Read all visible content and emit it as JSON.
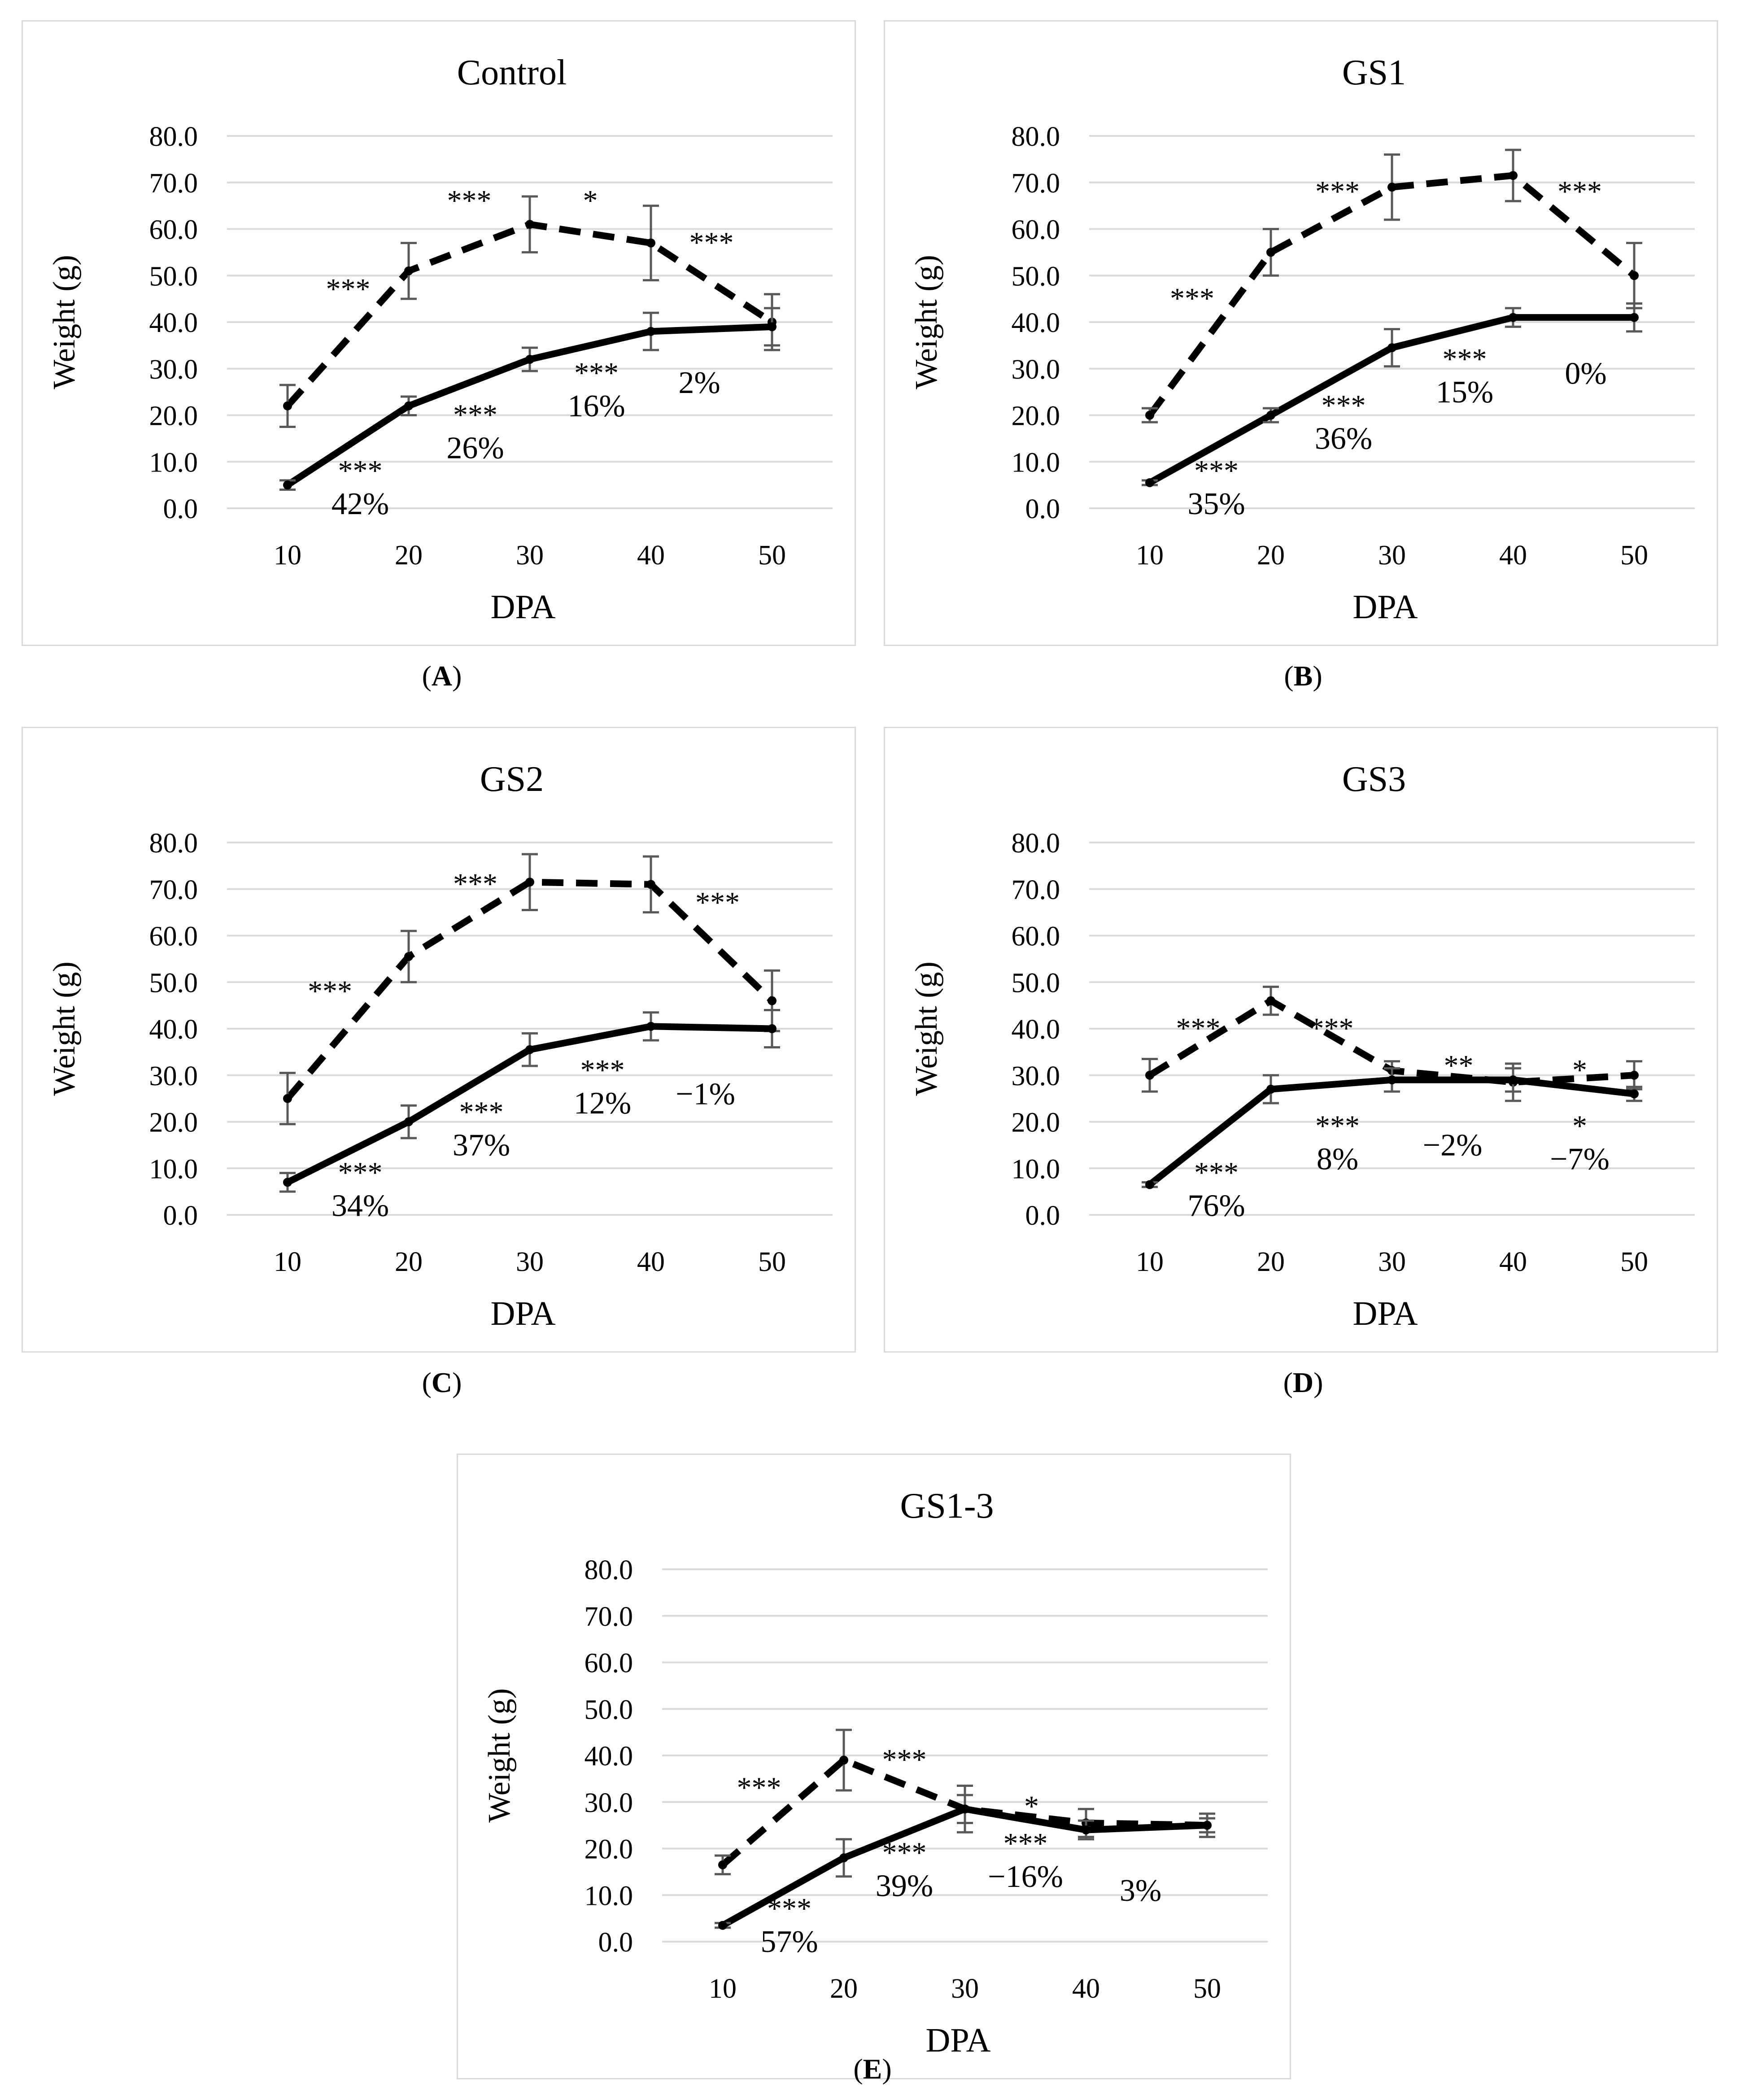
{
  "chart_data": [
    {
      "type": "line",
      "title": "Control",
      "panel_label": "A",
      "xlabel": "DPA",
      "ylabel": "Weight (g)",
      "x": [
        10,
        20,
        30,
        40,
        50
      ],
      "ylim": [
        0,
        80
      ],
      "y_ticks": [
        "0.0",
        "10.0",
        "20.0",
        "30.0",
        "40.0",
        "50.0",
        "60.0",
        "70.0",
        "80.0"
      ],
      "series": [
        {
          "name": "dashed",
          "style": "dashed",
          "values": [
            22.0,
            51.0,
            61.0,
            57.0,
            40.0
          ],
          "errors": [
            4.5,
            6.0,
            6.0,
            8.0,
            6.0
          ]
        },
        {
          "name": "solid",
          "style": "solid",
          "values": [
            5.0,
            22.0,
            32.0,
            38.0,
            39.0
          ],
          "errors": [
            1.0,
            2.0,
            2.5,
            4.0,
            4.0
          ]
        }
      ],
      "dashed_annotations": [
        {
          "x": 15,
          "y": 45,
          "text": "***"
        },
        {
          "x": 25,
          "y": 64,
          "text": "***"
        },
        {
          "x": 35,
          "y": 64,
          "text": "*"
        },
        {
          "x": 45,
          "y": 55,
          "text": "***"
        }
      ],
      "solid_annotations": [
        {
          "x": 16,
          "y": 6,
          "stars": "***",
          "pct": "42%"
        },
        {
          "x": 25.5,
          "y": 18,
          "stars": "***",
          "pct": "26%"
        },
        {
          "x": 35.5,
          "y": 27,
          "stars": "***",
          "pct": "16%"
        },
        {
          "x": 44,
          "y": 32,
          "stars": "",
          "pct": "2%"
        }
      ]
    },
    {
      "type": "line",
      "title": "GS1",
      "panel_label": "B",
      "xlabel": "DPA",
      "ylabel": "Weight (g)",
      "x": [
        10,
        20,
        30,
        40,
        50
      ],
      "ylim": [
        0,
        80
      ],
      "y_ticks": [
        "0.0",
        "10.0",
        "20.0",
        "30.0",
        "40.0",
        "50.0",
        "60.0",
        "70.0",
        "80.0"
      ],
      "series": [
        {
          "name": "dashed",
          "style": "dashed",
          "values": [
            20.0,
            55.0,
            69.0,
            71.5,
            50.0
          ],
          "errors": [
            1.5,
            5.0,
            7.0,
            5.5,
            7.0
          ]
        },
        {
          "name": "solid",
          "style": "solid",
          "values": [
            5.5,
            20.0,
            34.5,
            41.0,
            41.0
          ],
          "errors": [
            0.5,
            1.5,
            4.0,
            2.0,
            3.0
          ]
        }
      ],
      "dashed_annotations": [
        {
          "x": 13.5,
          "y": 43,
          "text": "***"
        },
        {
          "x": 25.5,
          "y": 66,
          "text": "***"
        },
        {
          "x": 45.5,
          "y": 66,
          "text": "***"
        }
      ],
      "solid_annotations": [
        {
          "x": 15.5,
          "y": 6,
          "stars": "***",
          "pct": "35%"
        },
        {
          "x": 26,
          "y": 20,
          "stars": "***",
          "pct": "36%"
        },
        {
          "x": 36,
          "y": 30,
          "stars": "***",
          "pct": "15%"
        },
        {
          "x": 46,
          "y": 34,
          "stars": "",
          "pct": "0%"
        }
      ]
    },
    {
      "type": "line",
      "title": "GS2",
      "panel_label": "C",
      "xlabel": "DPA",
      "ylabel": "Weight (g)",
      "x": [
        10,
        20,
        30,
        40,
        50
      ],
      "ylim": [
        0,
        80
      ],
      "y_ticks": [
        "0.0",
        "10.0",
        "20.0",
        "30.0",
        "40.0",
        "50.0",
        "60.0",
        "70.0",
        "80.0"
      ],
      "series": [
        {
          "name": "dashed",
          "style": "dashed",
          "values": [
            25.0,
            55.5,
            71.5,
            71.0,
            46.0
          ],
          "errors": [
            5.5,
            5.5,
            6.0,
            6.0,
            6.5
          ]
        },
        {
          "name": "solid",
          "style": "solid",
          "values": [
            7.0,
            20.0,
            35.5,
            40.5,
            40.0
          ],
          "errors": [
            2.0,
            3.5,
            3.5,
            3.0,
            4.0
          ]
        }
      ],
      "dashed_annotations": [
        {
          "x": 13.5,
          "y": 46,
          "text": "***"
        },
        {
          "x": 25.5,
          "y": 69,
          "text": "***"
        },
        {
          "x": 45.5,
          "y": 65,
          "text": "***"
        }
      ],
      "solid_annotations": [
        {
          "x": 16,
          "y": 7,
          "stars": "***",
          "pct": "34%"
        },
        {
          "x": 26,
          "y": 20,
          "stars": "***",
          "pct": "37%"
        },
        {
          "x": 36,
          "y": 29,
          "stars": "***",
          "pct": "12%"
        },
        {
          "x": 44.5,
          "y": 31,
          "stars": "",
          "pct": "−1%"
        }
      ]
    },
    {
      "type": "line",
      "title": "GS3",
      "panel_label": "D",
      "xlabel": "DPA",
      "ylabel": "Weight (g)",
      "x": [
        10,
        20,
        30,
        40,
        50
      ],
      "ylim": [
        0,
        80
      ],
      "y_ticks": [
        "0.0",
        "10.0",
        "20.0",
        "30.0",
        "40.0",
        "50.0",
        "60.0",
        "70.0",
        "80.0"
      ],
      "series": [
        {
          "name": "dashed",
          "style": "dashed",
          "values": [
            30.0,
            46.0,
            31.0,
            28.5,
            30.0
          ],
          "errors": [
            3.5,
            3.0,
            2.0,
            4.0,
            3.0
          ]
        },
        {
          "name": "solid",
          "style": "solid",
          "values": [
            6.5,
            27.0,
            29.0,
            29.0,
            26.0
          ],
          "errors": [
            0.5,
            3.0,
            2.5,
            2.5,
            1.5
          ]
        }
      ],
      "dashed_annotations": [
        {
          "x": 14,
          "y": 38,
          "text": "***"
        },
        {
          "x": 25,
          "y": 38,
          "text": "***"
        },
        {
          "x": 35.5,
          "y": 30,
          "text": "**"
        },
        {
          "x": 45.5,
          "y": 29,
          "text": "*"
        }
      ],
      "solid_annotations": [
        {
          "x": 15.5,
          "y": 7,
          "stars": "***",
          "pct": "76%"
        },
        {
          "x": 25.5,
          "y": 17,
          "stars": "***",
          "pct": "8%"
        },
        {
          "x": 35,
          "y": 20,
          "stars": "",
          "pct": "−2%"
        },
        {
          "x": 45.5,
          "y": 17,
          "stars": "*",
          "pct": "−7%"
        }
      ]
    },
    {
      "type": "line",
      "title": "GS1-3",
      "panel_label": "E",
      "xlabel": "DPA",
      "ylabel": "Weight (g)",
      "x": [
        10,
        20,
        30,
        40,
        50
      ],
      "ylim": [
        0,
        80
      ],
      "y_ticks": [
        "0.0",
        "10.0",
        "20.0",
        "30.0",
        "40.0",
        "50.0",
        "60.0",
        "70.0",
        "80.0"
      ],
      "series": [
        {
          "name": "dashed",
          "style": "dashed",
          "values": [
            16.5,
            39.0,
            28.5,
            25.5,
            25.0
          ],
          "errors": [
            2.0,
            6.5,
            5.0,
            3.0,
            2.5
          ]
        },
        {
          "name": "solid",
          "style": "solid",
          "values": [
            3.5,
            18.0,
            28.5,
            24.0,
            25.0
          ],
          "errors": [
            0.5,
            4.0,
            3.0,
            2.0,
            1.5
          ]
        }
      ],
      "dashed_annotations": [
        {
          "x": 13,
          "y": 31,
          "text": "***"
        },
        {
          "x": 25,
          "y": 37,
          "text": "***"
        },
        {
          "x": 35.5,
          "y": 27,
          "text": "*"
        }
      ],
      "solid_annotations": [
        {
          "x": 15.5,
          "y": 5,
          "stars": "***",
          "pct": "57%"
        },
        {
          "x": 25,
          "y": 17,
          "stars": "***",
          "pct": "39%"
        },
        {
          "x": 35,
          "y": 19,
          "stars": "***",
          "pct": "−16%"
        },
        {
          "x": 44.5,
          "y": 16,
          "stars": "",
          "pct": "3%"
        }
      ]
    }
  ]
}
